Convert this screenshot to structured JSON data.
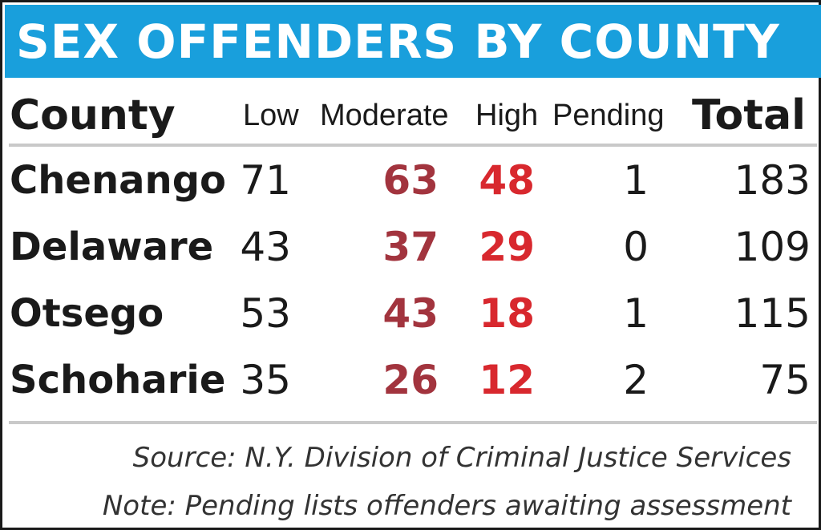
{
  "chart_data": {
    "type": "table",
    "title": "SEX OFFENDERS BY COUNTY",
    "columns": [
      "County",
      "Low",
      "Moderate",
      "High",
      "Pending",
      "Total"
    ],
    "rows": [
      {
        "county": "Chenango",
        "low": "71",
        "moderate": "63",
        "high": "48",
        "pending": "1",
        "total": "183"
      },
      {
        "county": "Delaware",
        "low": "43",
        "moderate": "37",
        "high": "29",
        "pending": "0",
        "total": "109"
      },
      {
        "county": "Otsego",
        "low": "53",
        "moderate": "43",
        "high": "18",
        "pending": "1",
        "total": "115"
      },
      {
        "county": "Schoharie",
        "low": "35",
        "moderate": "26",
        "high": "12",
        "pending": "2",
        "total": "75"
      }
    ],
    "source": "Source: N.Y. Division of Criminal Justice Services",
    "note": "Note: Pending lists offenders  awaiting assessment"
  },
  "colors": {
    "title_band": "#199fdc",
    "title_text": "#ffffff",
    "moderate": "#a2343e",
    "high": "#d8282e",
    "text": "#1a1a1a",
    "rule": "#c9c9c9"
  }
}
